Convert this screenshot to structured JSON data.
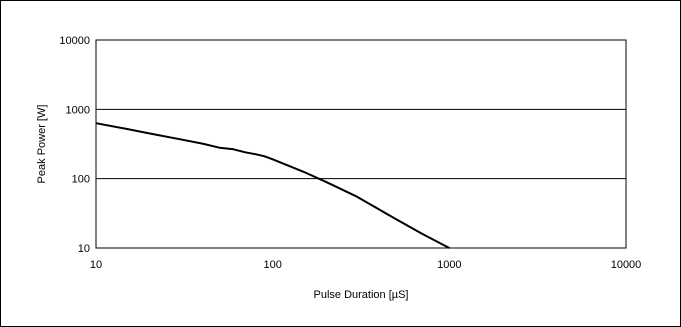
{
  "chart_data": {
    "type": "line",
    "title": "",
    "xlabel": "Pulse Duration [µS]",
    "ylabel": "Peak Power [W]",
    "xscale": "log",
    "yscale": "log",
    "xlim": [
      10,
      10000
    ],
    "ylim": [
      10,
      10000
    ],
    "x_ticks": [
      "10",
      "100",
      "1000",
      "10000"
    ],
    "y_ticks": [
      "10",
      "100",
      "1000",
      "10000"
    ],
    "grid": "horizontal",
    "line_color": "#000000",
    "series": [
      {
        "x": [
          10,
          15,
          20,
          30,
          40,
          50,
          60,
          70,
          80,
          90,
          100,
          150,
          200,
          300,
          400,
          500,
          700,
          1000
        ],
        "y": [
          630,
          520,
          450,
          370,
          320,
          280,
          265,
          240,
          225,
          210,
          190,
          125,
          90,
          55,
          36,
          26,
          16,
          10
        ]
      }
    ]
  }
}
